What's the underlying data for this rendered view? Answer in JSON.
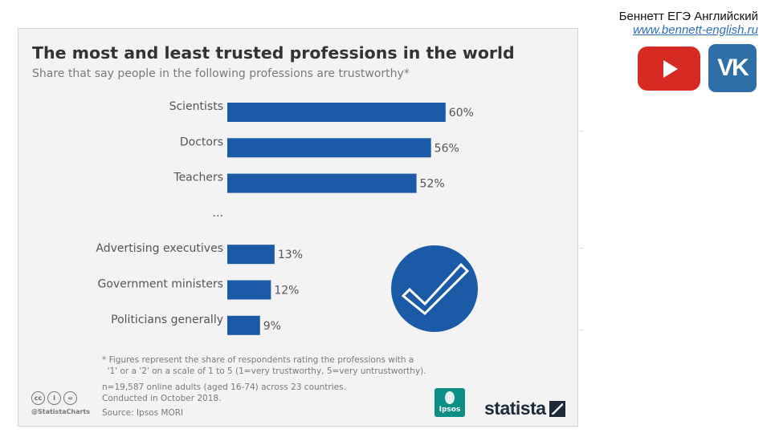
{
  "chart_data": {
    "type": "bar",
    "orientation": "horizontal",
    "title": "The most and least trusted professions in the world",
    "subtitle": "Share that say people in the following professions are trustworthy*",
    "categories": [
      "Scientists",
      "Doctors",
      "Teachers",
      "...",
      "Advertising executives",
      "Government ministers",
      "Politicians generally"
    ],
    "values": [
      60,
      56,
      52,
      null,
      13,
      12,
      9
    ],
    "value_labels": [
      "60%",
      "56%",
      "52%",
      "",
      "13%",
      "12%",
      "9%"
    ],
    "xlim": [
      0,
      100
    ],
    "grid": false,
    "bar_color": "#1a5aa6"
  },
  "footnote": {
    "lines": [
      "* Figures represent the share of respondents rating the professions with a",
      "  '1' or a '2' on a scale of 1 to 5 (1=very trustworthy, 5=very untrustworthy)."
    ],
    "sample": "n=19,587 online adults (aged 16-74) across 23 countries.",
    "conducted": "Conducted in October 2018.",
    "source": "Source: Ipsos MORI"
  },
  "license": {
    "icons": [
      "cc-icon",
      "person-icon",
      "equals-icon"
    ],
    "icon_glyphs": [
      "cc",
      "i",
      "="
    ],
    "handle": "@StatistaCharts"
  },
  "logos": {
    "ipsos": "Ipsos",
    "statista": "statista"
  },
  "branding": {
    "name": "Беннетт ЕГЭ Английский",
    "url": "www.bennett-english.ru",
    "youtube_color": "#d62b22",
    "vk_label": "VK",
    "vk_color": "#2f6fa8"
  }
}
